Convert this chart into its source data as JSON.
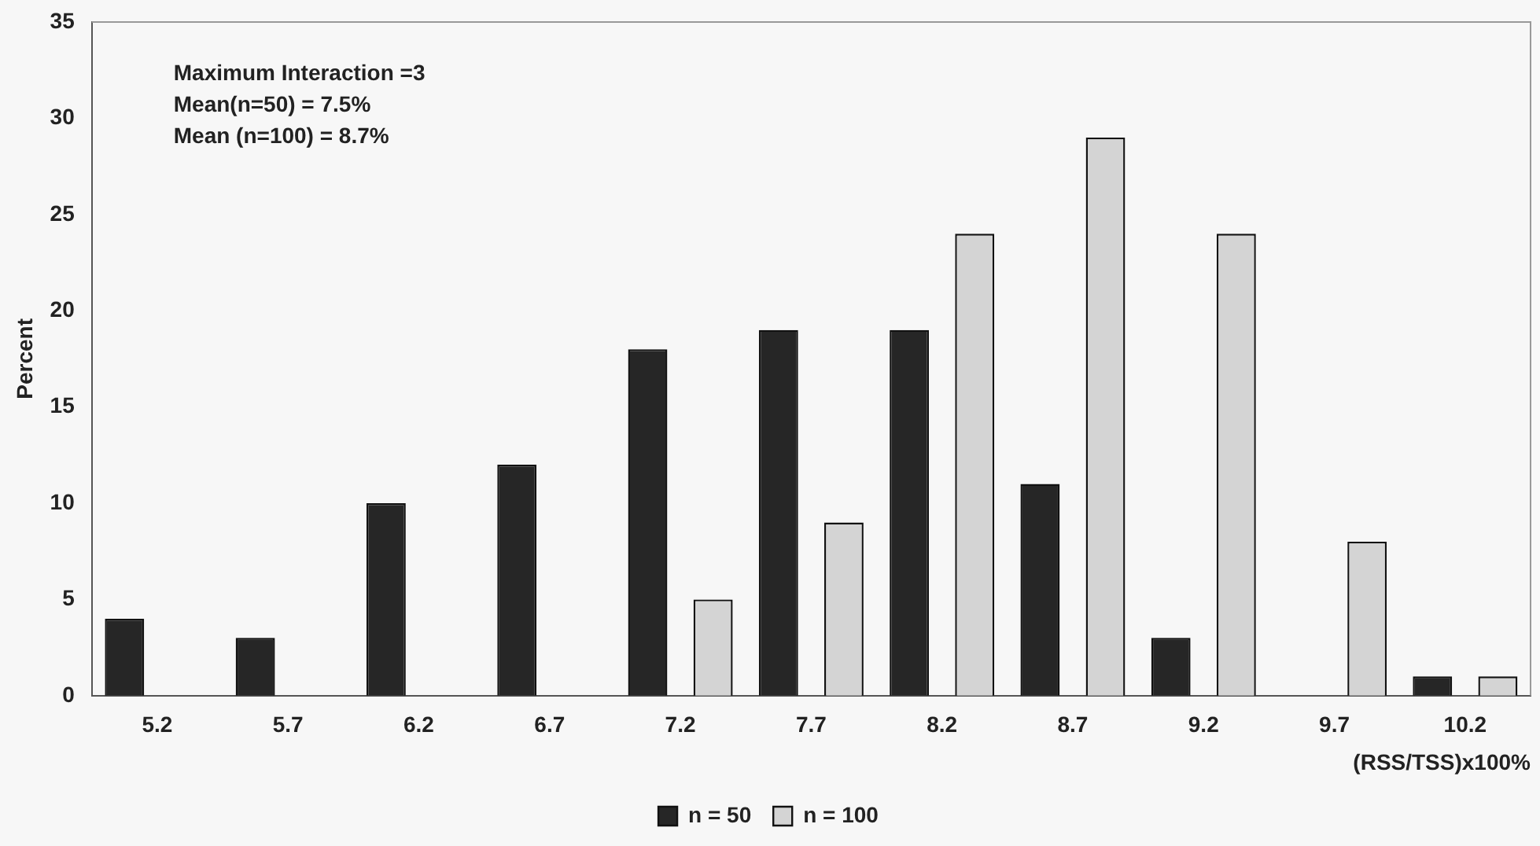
{
  "chart_data": {
    "type": "bar",
    "xlabel": "(RSS/TSS)x100%",
    "ylabel": "Percent",
    "categories": [
      "5.2",
      "5.7",
      "6.2",
      "6.7",
      "7.2",
      "7.7",
      "8.2",
      "8.7",
      "9.2",
      "9.7",
      "10.2"
    ],
    "series": [
      {
        "name": "n = 50",
        "color": "#262626",
        "values": [
          4,
          3,
          10,
          12,
          18,
          19,
          19,
          11,
          3,
          0,
          1
        ]
      },
      {
        "name": "n = 100",
        "color": "#d4d4d4",
        "values": [
          0,
          0,
          0,
          0,
          5,
          9,
          24,
          29,
          24,
          8,
          1
        ]
      }
    ],
    "ylim": [
      0,
      35
    ],
    "yticks": [
      0,
      5,
      10,
      15,
      20,
      25,
      30,
      35
    ],
    "grid": false,
    "legend": "bottom",
    "annotations": [
      "Maximum Interaction =3",
      "Mean(n=50) = 7.5%",
      "Mean (n=100) = 8.7%"
    ]
  }
}
